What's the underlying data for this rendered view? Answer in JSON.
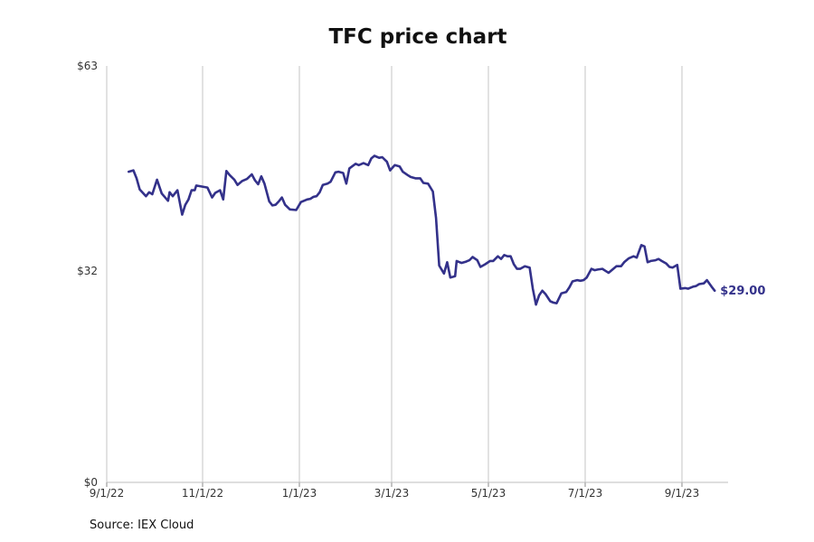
{
  "chart_data": {
    "type": "line",
    "title": "TFC price chart",
    "source": "Source: IEX Cloud",
    "xlabel": "",
    "ylabel": "",
    "x_range": [
      "2022-09-01",
      "2023-10-01"
    ],
    "ylim": [
      0,
      63
    ],
    "y_ticks": [
      0,
      32,
      63
    ],
    "y_tick_labels": [
      "$0",
      "$32",
      "$63"
    ],
    "x_ticks": [
      "2022-09-01",
      "2022-11-01",
      "2023-01-01",
      "2023-03-01",
      "2023-05-01",
      "2023-07-01",
      "2023-09-01"
    ],
    "x_tick_labels": [
      "9/1/22",
      "11/1/22",
      "1/1/23",
      "3/1/23",
      "5/1/23",
      "7/1/23",
      "9/1/23"
    ],
    "grid": "vertical",
    "line_color": "#33318a",
    "end_label": "$29.00",
    "series": [
      {
        "points": [
          [
            "2022-09-15",
            47.0
          ],
          [
            "2022-09-18",
            47.2
          ],
          [
            "2022-09-20",
            46.0
          ],
          [
            "2022-09-22",
            44.3
          ],
          [
            "2022-09-26",
            43.3
          ],
          [
            "2022-09-28",
            43.9
          ],
          [
            "2022-09-30",
            43.6
          ],
          [
            "2022-10-03",
            45.8
          ],
          [
            "2022-10-06",
            43.7
          ],
          [
            "2022-10-10",
            42.6
          ],
          [
            "2022-10-11",
            43.9
          ],
          [
            "2022-10-13",
            43.3
          ],
          [
            "2022-10-16",
            44.2
          ],
          [
            "2022-10-19",
            40.5
          ],
          [
            "2022-10-21",
            42.0
          ],
          [
            "2022-10-23",
            42.8
          ],
          [
            "2022-10-25",
            44.2
          ],
          [
            "2022-10-27",
            44.2
          ],
          [
            "2022-10-28",
            44.9
          ],
          [
            "2022-11-04",
            44.6
          ],
          [
            "2022-11-07",
            43.1
          ],
          [
            "2022-11-09",
            43.8
          ],
          [
            "2022-11-12",
            44.2
          ],
          [
            "2022-11-14",
            42.8
          ],
          [
            "2022-11-16",
            47.1
          ],
          [
            "2022-11-18",
            46.5
          ],
          [
            "2022-11-21",
            45.8
          ],
          [
            "2022-11-23",
            45.0
          ],
          [
            "2022-11-26",
            45.6
          ],
          [
            "2022-11-29",
            45.9
          ],
          [
            "2022-12-02",
            46.6
          ],
          [
            "2022-12-04",
            45.7
          ],
          [
            "2022-12-06",
            45.1
          ],
          [
            "2022-12-08",
            46.3
          ],
          [
            "2022-12-10",
            45.2
          ],
          [
            "2022-12-13",
            42.5
          ],
          [
            "2022-12-15",
            41.9
          ],
          [
            "2022-12-17",
            42.0
          ],
          [
            "2022-12-19",
            42.5
          ],
          [
            "2022-12-21",
            43.1
          ],
          [
            "2022-12-23",
            42.0
          ],
          [
            "2022-12-26",
            41.3
          ],
          [
            "2022-12-30",
            41.2
          ],
          [
            "2023-01-02",
            42.4
          ],
          [
            "2023-01-06",
            42.8
          ],
          [
            "2023-01-08",
            42.9
          ],
          [
            "2023-01-10",
            43.2
          ],
          [
            "2023-01-12",
            43.3
          ],
          [
            "2023-01-14",
            43.9
          ],
          [
            "2023-01-16",
            45.0
          ],
          [
            "2023-01-19",
            45.2
          ],
          [
            "2023-01-21",
            45.5
          ],
          [
            "2023-01-24",
            46.9
          ],
          [
            "2023-01-26",
            47.0
          ],
          [
            "2023-01-29",
            46.8
          ],
          [
            "2023-01-31",
            45.2
          ],
          [
            "2023-02-02",
            47.5
          ],
          [
            "2023-02-06",
            48.2
          ],
          [
            "2023-02-08",
            48.0
          ],
          [
            "2023-02-11",
            48.3
          ],
          [
            "2023-02-14",
            48.0
          ],
          [
            "2023-02-16",
            49.0
          ],
          [
            "2023-02-18",
            49.4
          ],
          [
            "2023-02-21",
            49.1
          ],
          [
            "2023-02-23",
            49.2
          ],
          [
            "2023-02-26",
            48.5
          ],
          [
            "2023-02-28",
            47.2
          ],
          [
            "2023-03-03",
            48.0
          ],
          [
            "2023-03-06",
            47.8
          ],
          [
            "2023-03-08",
            47.0
          ],
          [
            "2023-03-11",
            46.5
          ],
          [
            "2023-03-13",
            46.2
          ],
          [
            "2023-03-16",
            46.0
          ],
          [
            "2023-03-19",
            46.0
          ],
          [
            "2023-03-21",
            45.3
          ],
          [
            "2023-03-24",
            45.2
          ],
          [
            "2023-03-27",
            44.0
          ],
          [
            "2023-03-29",
            40.0
          ],
          [
            "2023-03-31",
            32.8
          ],
          [
            "2023-04-03",
            31.6
          ],
          [
            "2023-04-05",
            33.3
          ],
          [
            "2023-04-07",
            31.0
          ],
          [
            "2023-04-10",
            31.2
          ],
          [
            "2023-04-11",
            33.5
          ],
          [
            "2023-04-14",
            33.2
          ],
          [
            "2023-04-17",
            33.4
          ],
          [
            "2023-04-19",
            33.6
          ],
          [
            "2023-04-21",
            34.1
          ],
          [
            "2023-04-24",
            33.6
          ],
          [
            "2023-04-26",
            32.6
          ],
          [
            "2023-04-29",
            33.0
          ],
          [
            "2023-05-02",
            33.5
          ],
          [
            "2023-05-04",
            33.5
          ],
          [
            "2023-05-07",
            34.2
          ],
          [
            "2023-05-09",
            33.8
          ],
          [
            "2023-05-11",
            34.4
          ],
          [
            "2023-05-13",
            34.2
          ],
          [
            "2023-05-15",
            34.2
          ],
          [
            "2023-05-17",
            33.0
          ],
          [
            "2023-05-19",
            32.3
          ],
          [
            "2023-05-21",
            32.3
          ],
          [
            "2023-05-24",
            32.7
          ],
          [
            "2023-05-27",
            32.5
          ],
          [
            "2023-05-29",
            29.3
          ],
          [
            "2023-05-31",
            26.9
          ],
          [
            "2023-06-02",
            28.3
          ],
          [
            "2023-06-04",
            29.0
          ],
          [
            "2023-06-06",
            28.5
          ],
          [
            "2023-06-09",
            27.4
          ],
          [
            "2023-06-11",
            27.2
          ],
          [
            "2023-06-13",
            27.1
          ],
          [
            "2023-06-16",
            28.6
          ],
          [
            "2023-06-19",
            28.8
          ],
          [
            "2023-06-21",
            29.5
          ],
          [
            "2023-06-23",
            30.4
          ],
          [
            "2023-06-26",
            30.6
          ],
          [
            "2023-06-28",
            30.5
          ],
          [
            "2023-06-30",
            30.6
          ],
          [
            "2023-07-02",
            31.0
          ],
          [
            "2023-07-05",
            32.3
          ],
          [
            "2023-07-07",
            32.1
          ],
          [
            "2023-07-09",
            32.2
          ],
          [
            "2023-07-12",
            32.3
          ],
          [
            "2023-07-14",
            32.0
          ],
          [
            "2023-07-16",
            31.7
          ],
          [
            "2023-07-19",
            32.3
          ],
          [
            "2023-07-21",
            32.7
          ],
          [
            "2023-07-24",
            32.7
          ],
          [
            "2023-07-26",
            33.3
          ],
          [
            "2023-07-29",
            33.9
          ],
          [
            "2023-08-01",
            34.2
          ],
          [
            "2023-08-03",
            34.0
          ],
          [
            "2023-08-06",
            35.9
          ],
          [
            "2023-08-08",
            35.7
          ],
          [
            "2023-08-10",
            33.3
          ],
          [
            "2023-08-12",
            33.5
          ],
          [
            "2023-08-15",
            33.6
          ],
          [
            "2023-08-17",
            33.8
          ],
          [
            "2023-08-19",
            33.5
          ],
          [
            "2023-08-22",
            33.1
          ],
          [
            "2023-08-24",
            32.6
          ],
          [
            "2023-08-26",
            32.5
          ],
          [
            "2023-08-29",
            32.9
          ],
          [
            "2023-08-31",
            29.3
          ],
          [
            "2023-09-03",
            29.4
          ],
          [
            "2023-09-05",
            29.3
          ],
          [
            "2023-09-08",
            29.6
          ],
          [
            "2023-09-10",
            29.7
          ],
          [
            "2023-09-12",
            30.0
          ],
          [
            "2023-09-15",
            30.1
          ],
          [
            "2023-09-17",
            30.6
          ],
          [
            "2023-09-20",
            29.6
          ],
          [
            "2023-09-22",
            29.0
          ]
        ]
      }
    ]
  }
}
